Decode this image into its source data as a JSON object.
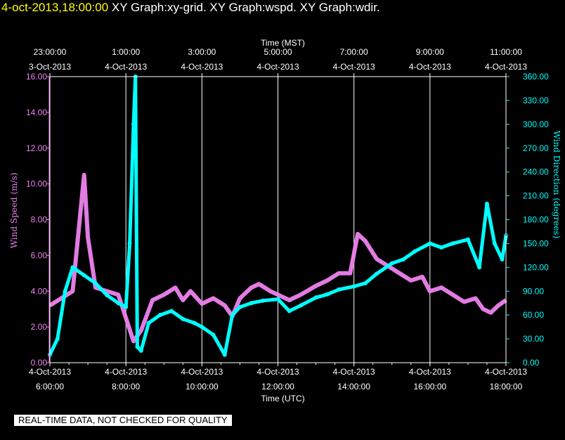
{
  "header": {
    "timestamp": "4-oct-2013,18:00:00",
    "titles": "XY Graph:xy-grid.  XY Graph:wspd.  XY Graph:wdir."
  },
  "footer": {
    "quality_note": "REAL-TIME DATA, NOT CHECKED FOR QUALITY"
  },
  "colors": {
    "wind_speed": "#ee82ee",
    "wind_direction": "#00ffff",
    "grid": "#ffffff",
    "background": "#000000"
  },
  "chart_data": {
    "type": "line",
    "grid": true,
    "top_axis": {
      "title": "Time (MST)",
      "ticks": [
        {
          "time": "23:00:00",
          "date": "3-Oct-2013"
        },
        {
          "time": "1:00:00",
          "date": "4-Oct-2013"
        },
        {
          "time": "3:00:00",
          "date": "4-Oct-2013"
        },
        {
          "time": "5:00:00",
          "date": "4-Oct-2013"
        },
        {
          "time": "7:00:00",
          "date": "4-Oct-2013"
        },
        {
          "time": "9:00:00",
          "date": "4-Oct-2013"
        },
        {
          "time": "11:00:00",
          "date": "4-Oct-2013"
        }
      ]
    },
    "bottom_axis": {
      "title": "Time (UTC)",
      "range_hours": [
        6,
        18
      ],
      "ticks": [
        {
          "date": "4-Oct-2013",
          "time": "6:00:00"
        },
        {
          "date": "4-Oct-2013",
          "time": "8:00:00"
        },
        {
          "date": "4-Oct-2013",
          "time": "10:00:00"
        },
        {
          "date": "4-Oct-2013",
          "time": "12:00:00"
        },
        {
          "date": "4-Oct-2013",
          "time": "14:00:00"
        },
        {
          "date": "4-Oct-2013",
          "time": "16:00:00"
        },
        {
          "date": "4-Oct-2013",
          "time": "18:00:00"
        }
      ]
    },
    "left_axis": {
      "title": "Wind Speed (m/s)",
      "range": [
        0,
        16
      ],
      "ticks": [
        "0.00",
        "2.00",
        "4.00",
        "6.00",
        "8.00",
        "10.00",
        "12.00",
        "14.00",
        "16.00"
      ]
    },
    "right_axis": {
      "title": "Wind Direction (degrees)",
      "range": [
        0,
        360
      ],
      "ticks": [
        "0.00",
        "30.00",
        "60.00",
        "90.00",
        "120.00",
        "150.00",
        "180.00",
        "210.00",
        "240.00",
        "270.00",
        "300.00",
        "330.00",
        "360.00"
      ]
    },
    "series": [
      {
        "name": "wspd",
        "color": "#ee82ee",
        "x_hours_utc": [
          6.0,
          6.3,
          6.6,
          6.9,
          7.0,
          7.2,
          7.5,
          7.8,
          8.0,
          8.2,
          8.4,
          8.7,
          9.0,
          9.3,
          9.5,
          9.7,
          10.0,
          10.3,
          10.6,
          10.8,
          11.0,
          11.3,
          11.5,
          11.8,
          12.0,
          12.3,
          12.6,
          13.0,
          13.3,
          13.6,
          13.9,
          14.1,
          14.3,
          14.6,
          14.9,
          15.2,
          15.5,
          15.8,
          16.0,
          16.3,
          16.6,
          16.9,
          17.2,
          17.4,
          17.6,
          17.8,
          18.0
        ],
        "y": [
          3.2,
          3.6,
          4.0,
          10.5,
          7.0,
          4.2,
          4.0,
          3.8,
          2.5,
          1.2,
          1.8,
          3.5,
          3.8,
          4.2,
          3.5,
          4.0,
          3.3,
          3.6,
          3.2,
          2.6,
          3.6,
          4.2,
          4.4,
          4.0,
          3.8,
          3.5,
          3.8,
          4.3,
          4.6,
          5.0,
          5.0,
          7.2,
          6.8,
          5.8,
          5.4,
          5.0,
          4.6,
          4.8,
          4.0,
          4.2,
          3.8,
          3.4,
          3.6,
          3.0,
          2.8,
          3.2,
          3.5
        ]
      },
      {
        "name": "wdir",
        "color": "#00ffff",
        "x_hours_utc": [
          6.0,
          6.2,
          6.4,
          6.6,
          6.9,
          7.2,
          7.5,
          7.8,
          8.0,
          8.1,
          8.2,
          8.25,
          8.3,
          8.4,
          8.6,
          8.9,
          9.2,
          9.5,
          9.8,
          10.0,
          10.3,
          10.6,
          10.8,
          11.0,
          11.3,
          11.6,
          12.0,
          12.3,
          12.6,
          13.0,
          13.3,
          13.6,
          14.0,
          14.3,
          14.6,
          15.0,
          15.3,
          15.6,
          16.0,
          16.3,
          16.6,
          17.0,
          17.3,
          17.5,
          17.7,
          17.9,
          18.0
        ],
        "y": [
          10,
          30,
          90,
          120,
          110,
          100,
          85,
          75,
          70,
          150,
          300,
          360,
          20,
          15,
          50,
          60,
          65,
          55,
          50,
          45,
          35,
          10,
          60,
          70,
          75,
          78,
          80,
          65,
          72,
          82,
          86,
          92,
          96,
          100,
          112,
          125,
          130,
          140,
          150,
          145,
          150,
          155,
          120,
          200,
          150,
          130,
          160
        ]
      }
    ]
  }
}
